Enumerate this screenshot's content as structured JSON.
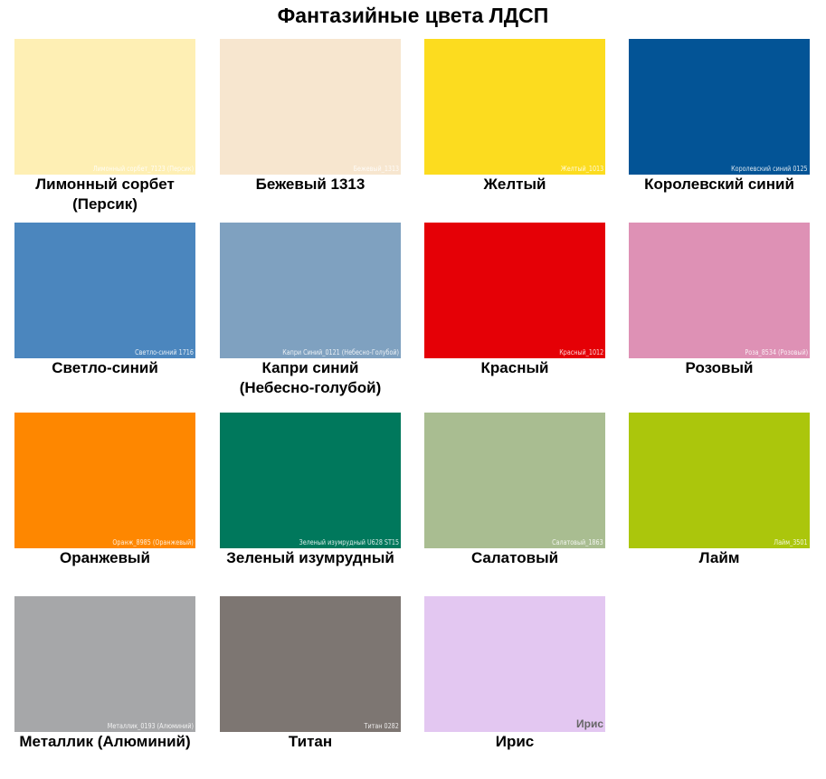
{
  "title": "Фантазийные цвета ЛДСП",
  "swatches": [
    {
      "name": "Лимонный сорбет (Персик)",
      "code": "Лимонный сорбет_7123 (Персик)",
      "color": "#feefb4"
    },
    {
      "name": "Бежевый 1313",
      "code": "Бежевый_1313",
      "color": "#f7e6cf"
    },
    {
      "name": "Желтый",
      "code": "Желтый_1013",
      "color": "#fcdc1f"
    },
    {
      "name": "Королевский синий",
      "code": "Королевский синий 0125",
      "color": "#035496"
    },
    {
      "name": "Светло-синий",
      "code": "Светло-синий 1716",
      "color": "#4b86be"
    },
    {
      "name": "Капри синий (Небесно-голубой)",
      "code": "Капри Синий_0121 (Небесно-Голубой)",
      "color": "#7fa1c0"
    },
    {
      "name": "Красный",
      "code": "Красный_1012",
      "color": "#e50006"
    },
    {
      "name": "Розовый",
      "code": "Роза_8534 (Розовый)",
      "color": "#de91b5"
    },
    {
      "name": "Оранжевый",
      "code": "Оранж_8985 (Оранжевый)",
      "color": "#fe8700"
    },
    {
      "name": "Зеленый изумрудный",
      "code": "Зеленый изумрудный U628 ST15",
      "color": "#00785c"
    },
    {
      "name": "Салатовый",
      "code": "Салатовый_1863",
      "color": "#a9bd91"
    },
    {
      "name": "Лайм",
      "code": "Лайм_3501",
      "color": "#abc60c"
    },
    {
      "name": "Металлик (Алюминий)",
      "code": "Металлик_0193 (Алюминий)",
      "color": "#a6a7a9"
    },
    {
      "name": "Титан",
      "code": "Титан 0282",
      "color": "#7d7672"
    },
    {
      "name": "Ирис",
      "code": "Ирис",
      "color": "#e3c7f1"
    }
  ]
}
